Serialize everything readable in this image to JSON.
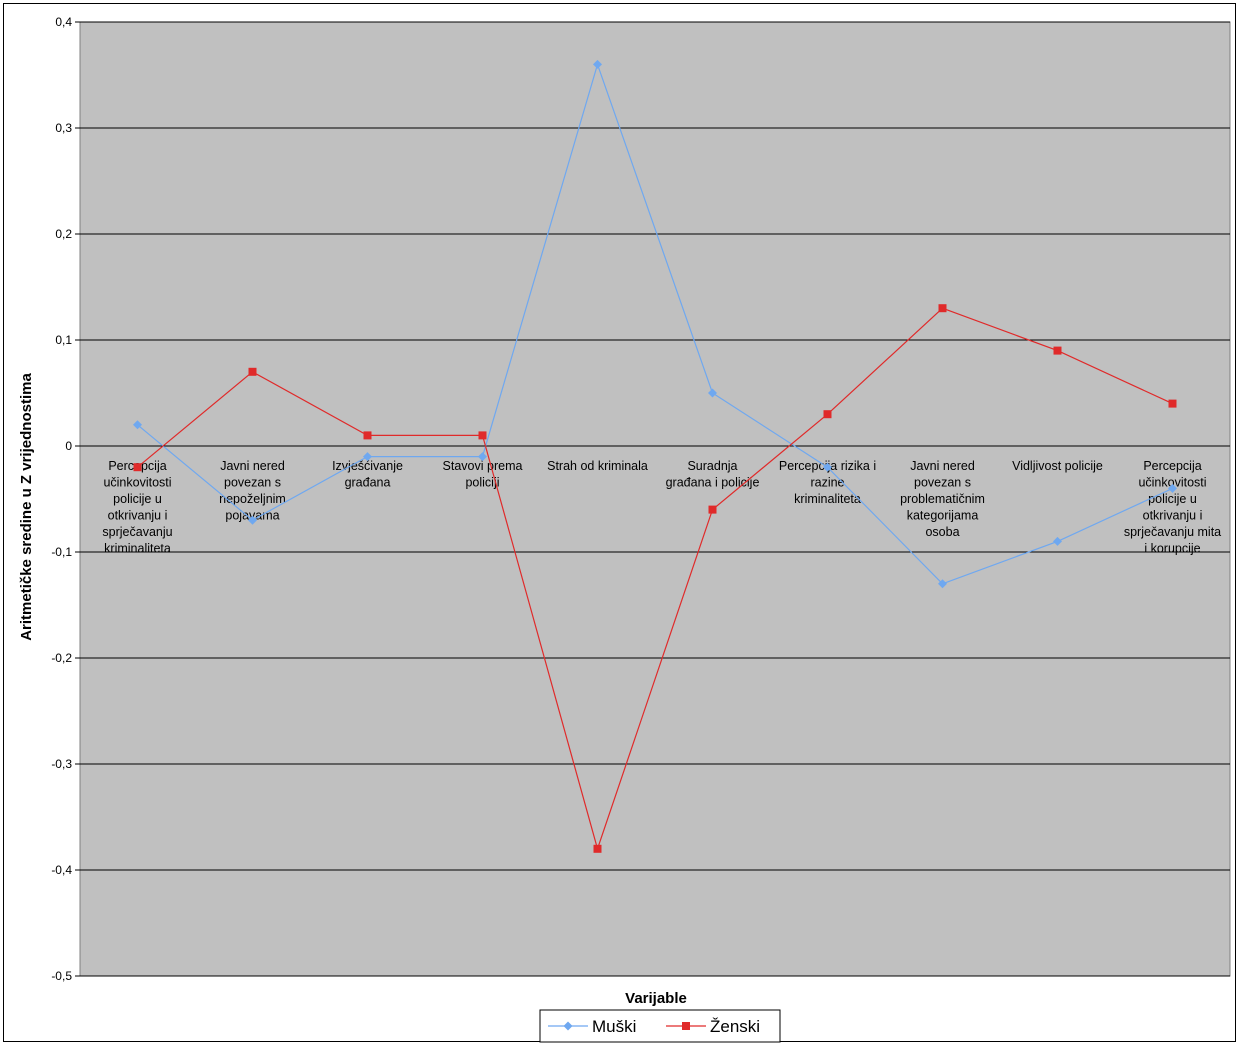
{
  "chart_data": {
    "type": "line",
    "xlabel": "Varijable",
    "ylabel": "Aritmetičke sredine u Z vrijednostima",
    "ylim": [
      -0.5,
      0.4
    ],
    "yticks": [
      "0,4",
      "0,3",
      "0,2",
      "0,1",
      "0",
      "-0,1",
      "-0,2",
      "-0,3",
      "-0,4",
      "-0,5"
    ],
    "grid": true,
    "legend_position": "bottom",
    "categories": [
      "Percepcija učinkovitosti policije u otkrivanju i sprječavanju kriminaliteta",
      "Javni nered povezan s nepoželjnim pojavama",
      "Izvješćivanje građana",
      "Stavovi prema policiji",
      "Strah od kriminala",
      "Suradnja građana i policije",
      "Percepcija rizika i razine kriminaliteta",
      "Javni nered povezan s problematičnim kategorijama osoba",
      "Vidljivost policije",
      "Percepcija učinkovitosti policije u otkrivanju i sprječavanju mita i korupcije"
    ],
    "category_label_lines": [
      [
        "Percepcija",
        "učinkovitosti",
        "policije u",
        "otkrivanju i",
        "sprječavanju",
        "kriminaliteta"
      ],
      [
        "Javni nered",
        "povezan s",
        "nepoželjnim",
        "pojavama"
      ],
      [
        "Izvješćivanje",
        "građana"
      ],
      [
        "Stavovi prema",
        "policiji"
      ],
      [
        "Strah od kriminala"
      ],
      [
        "Suradnja",
        "građana i policije"
      ],
      [
        "Percepcija rizika i",
        "razine",
        "kriminaliteta"
      ],
      [
        "Javni nered",
        "povezan s",
        "problematičnim",
        "kategorijama",
        "osoba"
      ],
      [
        "Vidljivost policije"
      ],
      [
        "Percepcija",
        "učinkovitosti",
        "policije u",
        "otkrivanju i",
        "sprječavanju mita",
        "i korupcije"
      ]
    ],
    "series": [
      {
        "name": "Muški",
        "color": "#6fa8f0",
        "marker": "diamond",
        "values": [
          0.02,
          -0.07,
          -0.01,
          -0.01,
          0.36,
          0.05,
          -0.02,
          -0.13,
          -0.09,
          -0.04
        ]
      },
      {
        "name": "Ženski",
        "color": "#e02a2a",
        "marker": "square",
        "values": [
          -0.02,
          0.07,
          0.01,
          0.01,
          -0.38,
          -0.06,
          0.03,
          0.13,
          0.09,
          0.04
        ]
      }
    ],
    "colors": {
      "plot_background": "#c0c0c0",
      "gridline": "#000000"
    }
  }
}
